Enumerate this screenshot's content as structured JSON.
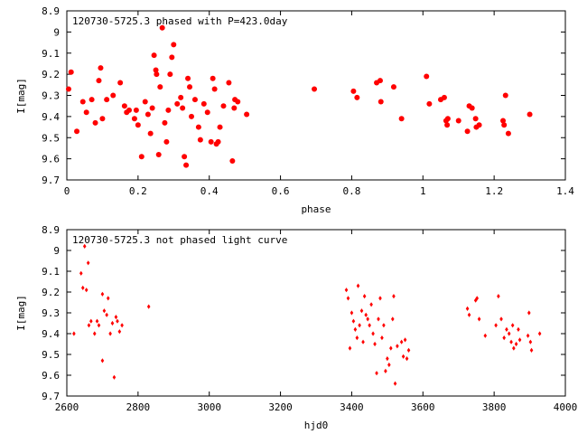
{
  "chart_data": [
    {
      "type": "scatter",
      "title": "120730-5725.3 phased with P=423.0day",
      "xlabel": "phase",
      "ylabel": "I[mag]",
      "xlim": [
        0,
        1.4
      ],
      "ylim": [
        9.7,
        8.9
      ],
      "y_inverted": true,
      "marker": "filled-circle",
      "color": "#ff0000",
      "x_ticks": [
        "0",
        "0.2",
        "0.4",
        "0.6",
        "0.8",
        "1",
        "1.2",
        "1.4"
      ],
      "y_ticks": [
        "8.9",
        "9",
        "9.1",
        "9.2",
        "9.3",
        "9.4",
        "9.5",
        "9.6",
        "9.7"
      ],
      "points": [
        [
          0.005,
          9.27
        ],
        [
          0.012,
          9.19
        ],
        [
          0.028,
          9.47
        ],
        [
          0.045,
          9.33
        ],
        [
          0.055,
          9.38
        ],
        [
          0.07,
          9.32
        ],
        [
          0.08,
          9.43
        ],
        [
          0.09,
          9.23
        ],
        [
          0.095,
          9.17
        ],
        [
          0.1,
          9.41
        ],
        [
          0.112,
          9.32
        ],
        [
          0.13,
          9.3
        ],
        [
          0.15,
          9.24
        ],
        [
          0.162,
          9.35
        ],
        [
          0.168,
          9.38
        ],
        [
          0.175,
          9.37
        ],
        [
          0.19,
          9.41
        ],
        [
          0.195,
          9.37
        ],
        [
          0.2,
          9.44
        ],
        [
          0.21,
          9.59
        ],
        [
          0.22,
          9.33
        ],
        [
          0.228,
          9.39
        ],
        [
          0.235,
          9.48
        ],
        [
          0.24,
          9.36
        ],
        [
          0.245,
          9.11
        ],
        [
          0.25,
          9.18
        ],
        [
          0.252,
          9.2
        ],
        [
          0.258,
          9.58
        ],
        [
          0.262,
          9.26
        ],
        [
          0.268,
          8.98
        ],
        [
          0.275,
          9.43
        ],
        [
          0.28,
          9.52
        ],
        [
          0.285,
          9.37
        ],
        [
          0.29,
          9.2
        ],
        [
          0.295,
          9.12
        ],
        [
          0.3,
          9.06
        ],
        [
          0.31,
          9.34
        ],
        [
          0.32,
          9.31
        ],
        [
          0.325,
          9.36
        ],
        [
          0.33,
          9.59
        ],
        [
          0.335,
          9.63
        ],
        [
          0.34,
          9.22
        ],
        [
          0.345,
          9.26
        ],
        [
          0.35,
          9.4
        ],
        [
          0.36,
          9.32
        ],
        [
          0.37,
          9.45
        ],
        [
          0.375,
          9.51
        ],
        [
          0.385,
          9.34
        ],
        [
          0.395,
          9.38
        ],
        [
          0.405,
          9.52
        ],
        [
          0.41,
          9.22
        ],
        [
          0.415,
          9.27
        ],
        [
          0.42,
          9.53
        ],
        [
          0.425,
          9.52
        ],
        [
          0.43,
          9.45
        ],
        [
          0.44,
          9.35
        ],
        [
          0.455,
          9.24
        ],
        [
          0.465,
          9.61
        ],
        [
          0.47,
          9.36
        ],
        [
          0.472,
          9.32
        ],
        [
          0.48,
          9.33
        ],
        [
          0.505,
          9.39
        ],
        [
          0.695,
          9.27
        ],
        [
          0.805,
          9.28
        ],
        [
          0.815,
          9.31
        ],
        [
          0.87,
          9.24
        ],
        [
          0.88,
          9.23
        ],
        [
          0.882,
          9.33
        ],
        [
          0.918,
          9.26
        ],
        [
          0.94,
          9.41
        ],
        [
          1.01,
          9.21
        ],
        [
          1.018,
          9.34
        ],
        [
          1.05,
          9.32
        ],
        [
          1.06,
          9.31
        ],
        [
          1.065,
          9.42
        ],
        [
          1.068,
          9.44
        ],
        [
          1.07,
          9.41
        ],
        [
          1.1,
          9.42
        ],
        [
          1.125,
          9.47
        ],
        [
          1.13,
          9.35
        ],
        [
          1.138,
          9.36
        ],
        [
          1.148,
          9.41
        ],
        [
          1.15,
          9.45
        ],
        [
          1.158,
          9.44
        ],
        [
          1.225,
          9.42
        ],
        [
          1.228,
          9.44
        ],
        [
          1.232,
          9.3
        ],
        [
          1.24,
          9.48
        ],
        [
          1.3,
          9.39
        ]
      ]
    },
    {
      "type": "scatter",
      "title": "120730-5725.3 not phased light curve",
      "xlabel": "hjd0",
      "ylabel": "I[mag]",
      "xlim": [
        2600,
        4000
      ],
      "ylim": [
        9.7,
        8.9
      ],
      "y_inverted": true,
      "marker": "small-diamond",
      "color": "#ff0000",
      "x_ticks": [
        "2600",
        "2800",
        "3000",
        "3200",
        "3400",
        "3600",
        "3800",
        "4000"
      ],
      "y_ticks": [
        "8.9",
        "9",
        "9.1",
        "9.2",
        "9.3",
        "9.4",
        "9.5",
        "9.6",
        "9.7"
      ],
      "points": [
        [
          2620,
          9.4
        ],
        [
          2640,
          9.11
        ],
        [
          2645,
          9.18
        ],
        [
          2650,
          8.98
        ],
        [
          2655,
          9.19
        ],
        [
          2660,
          9.06
        ],
        [
          2662,
          9.36
        ],
        [
          2668,
          9.34
        ],
        [
          2678,
          9.4
        ],
        [
          2685,
          9.34
        ],
        [
          2690,
          9.36
        ],
        [
          2700,
          9.21
        ],
        [
          2705,
          9.29
        ],
        [
          2712,
          9.31
        ],
        [
          2716,
          9.23
        ],
        [
          2722,
          9.4
        ],
        [
          2728,
          9.35
        ],
        [
          2733,
          9.61
        ],
        [
          2738,
          9.32
        ],
        [
          2742,
          9.34
        ],
        [
          2748,
          9.39
        ],
        [
          2755,
          9.36
        ],
        [
          2700,
          9.53
        ],
        [
          2830,
          9.27
        ],
        [
          3385,
          9.19
        ],
        [
          3390,
          9.23
        ],
        [
          3395,
          9.47
        ],
        [
          3400,
          9.3
        ],
        [
          3405,
          9.34
        ],
        [
          3410,
          9.38
        ],
        [
          3415,
          9.42
        ],
        [
          3418,
          9.17
        ],
        [
          3422,
          9.36
        ],
        [
          3428,
          9.29
        ],
        [
          3432,
          9.44
        ],
        [
          3436,
          9.22
        ],
        [
          3440,
          9.31
        ],
        [
          3445,
          9.33
        ],
        [
          3450,
          9.36
        ],
        [
          3455,
          9.26
        ],
        [
          3460,
          9.4
        ],
        [
          3465,
          9.45
        ],
        [
          3470,
          9.59
        ],
        [
          3475,
          9.33
        ],
        [
          3480,
          9.23
        ],
        [
          3485,
          9.42
        ],
        [
          3490,
          9.36
        ],
        [
          3495,
          9.58
        ],
        [
          3500,
          9.52
        ],
        [
          3505,
          9.55
        ],
        [
          3510,
          9.47
        ],
        [
          3515,
          9.33
        ],
        [
          3518,
          9.22
        ],
        [
          3522,
          9.64
        ],
        [
          3528,
          9.46
        ],
        [
          3540,
          9.44
        ],
        [
          3545,
          9.51
        ],
        [
          3550,
          9.43
        ],
        [
          3555,
          9.52
        ],
        [
          3560,
          9.48
        ],
        [
          3725,
          9.28
        ],
        [
          3730,
          9.31
        ],
        [
          3748,
          9.24
        ],
        [
          3752,
          9.23
        ],
        [
          3758,
          9.33
        ],
        [
          3775,
          9.41
        ],
        [
          3805,
          9.36
        ],
        [
          3812,
          9.22
        ],
        [
          3820,
          9.33
        ],
        [
          3828,
          9.42
        ],
        [
          3835,
          9.38
        ],
        [
          3842,
          9.4
        ],
        [
          3848,
          9.44
        ],
        [
          3852,
          9.36
        ],
        [
          3855,
          9.47
        ],
        [
          3862,
          9.45
        ],
        [
          3868,
          9.38
        ],
        [
          3872,
          9.43
        ],
        [
          3895,
          9.41
        ],
        [
          3898,
          9.3
        ],
        [
          3902,
          9.44
        ],
        [
          3905,
          9.48
        ],
        [
          3928,
          9.4
        ]
      ]
    }
  ]
}
